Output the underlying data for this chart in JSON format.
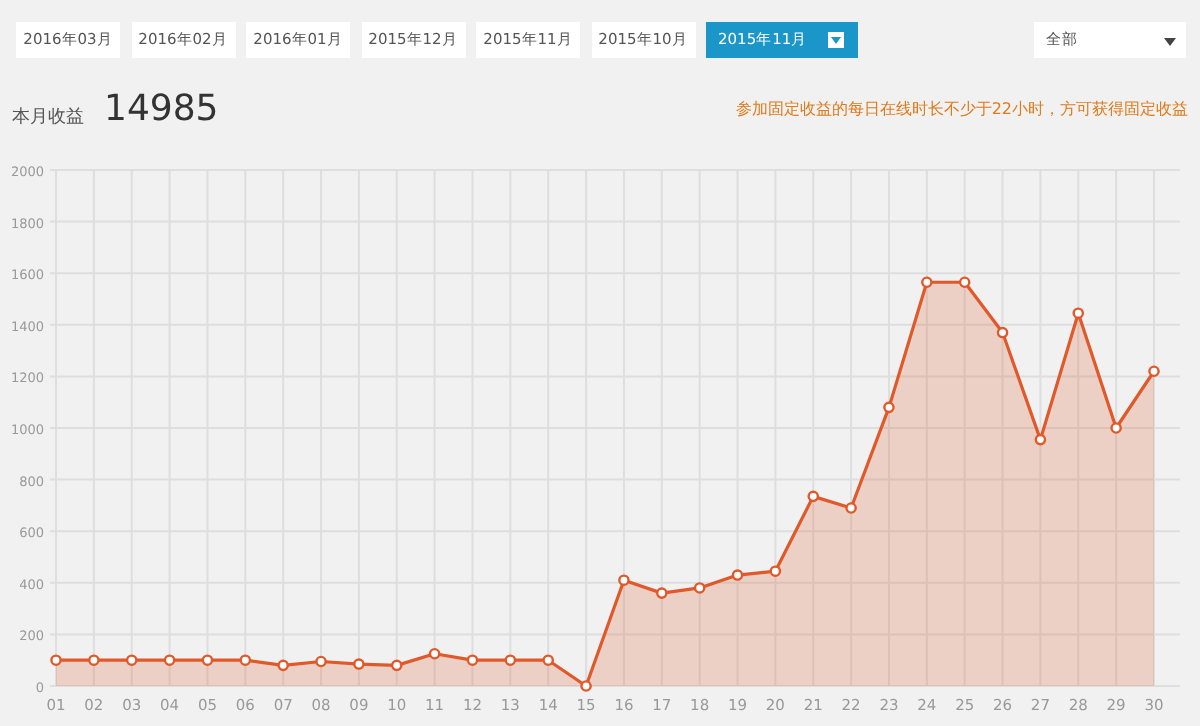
{
  "chart_data": {
    "type": "area",
    "title": "本月收益",
    "subtitle": "14985",
    "annotations": [
      "2016年03月",
      "2016年02月",
      "2016年01月",
      "2015年12月",
      "2015年11月",
      "2015年10月",
      "2015年11月",
      "全部",
      "参加固定收益的每日在线时长不少于22小时，方可获得固定收益"
    ],
    "categories": [
      "01",
      "02",
      "03",
      "04",
      "05",
      "06",
      "07",
      "08",
      "09",
      "10",
      "11",
      "12",
      "13",
      "14",
      "15",
      "16",
      "17",
      "18",
      "19",
      "20",
      "21",
      "22",
      "23",
      "24",
      "25",
      "26",
      "27",
      "28",
      "29",
      "30"
    ],
    "series": [
      {
        "color": "#e0592a",
        "values": [
          100,
          100,
          100,
          100,
          100,
          100,
          80,
          95,
          85,
          80,
          125,
          100,
          100,
          100,
          0,
          410,
          360,
          380,
          430,
          445,
          735,
          690,
          1080,
          1565,
          1565,
          1370,
          955,
          1445,
          1000,
          1220
        ]
      }
    ],
    "ylim": [
      0,
      2000
    ],
    "yticks": [
      0,
      200,
      400,
      600,
      800,
      1000,
      1200,
      1400,
      1600,
      1800,
      2000
    ],
    "grid": true,
    "marker": "circle"
  }
}
